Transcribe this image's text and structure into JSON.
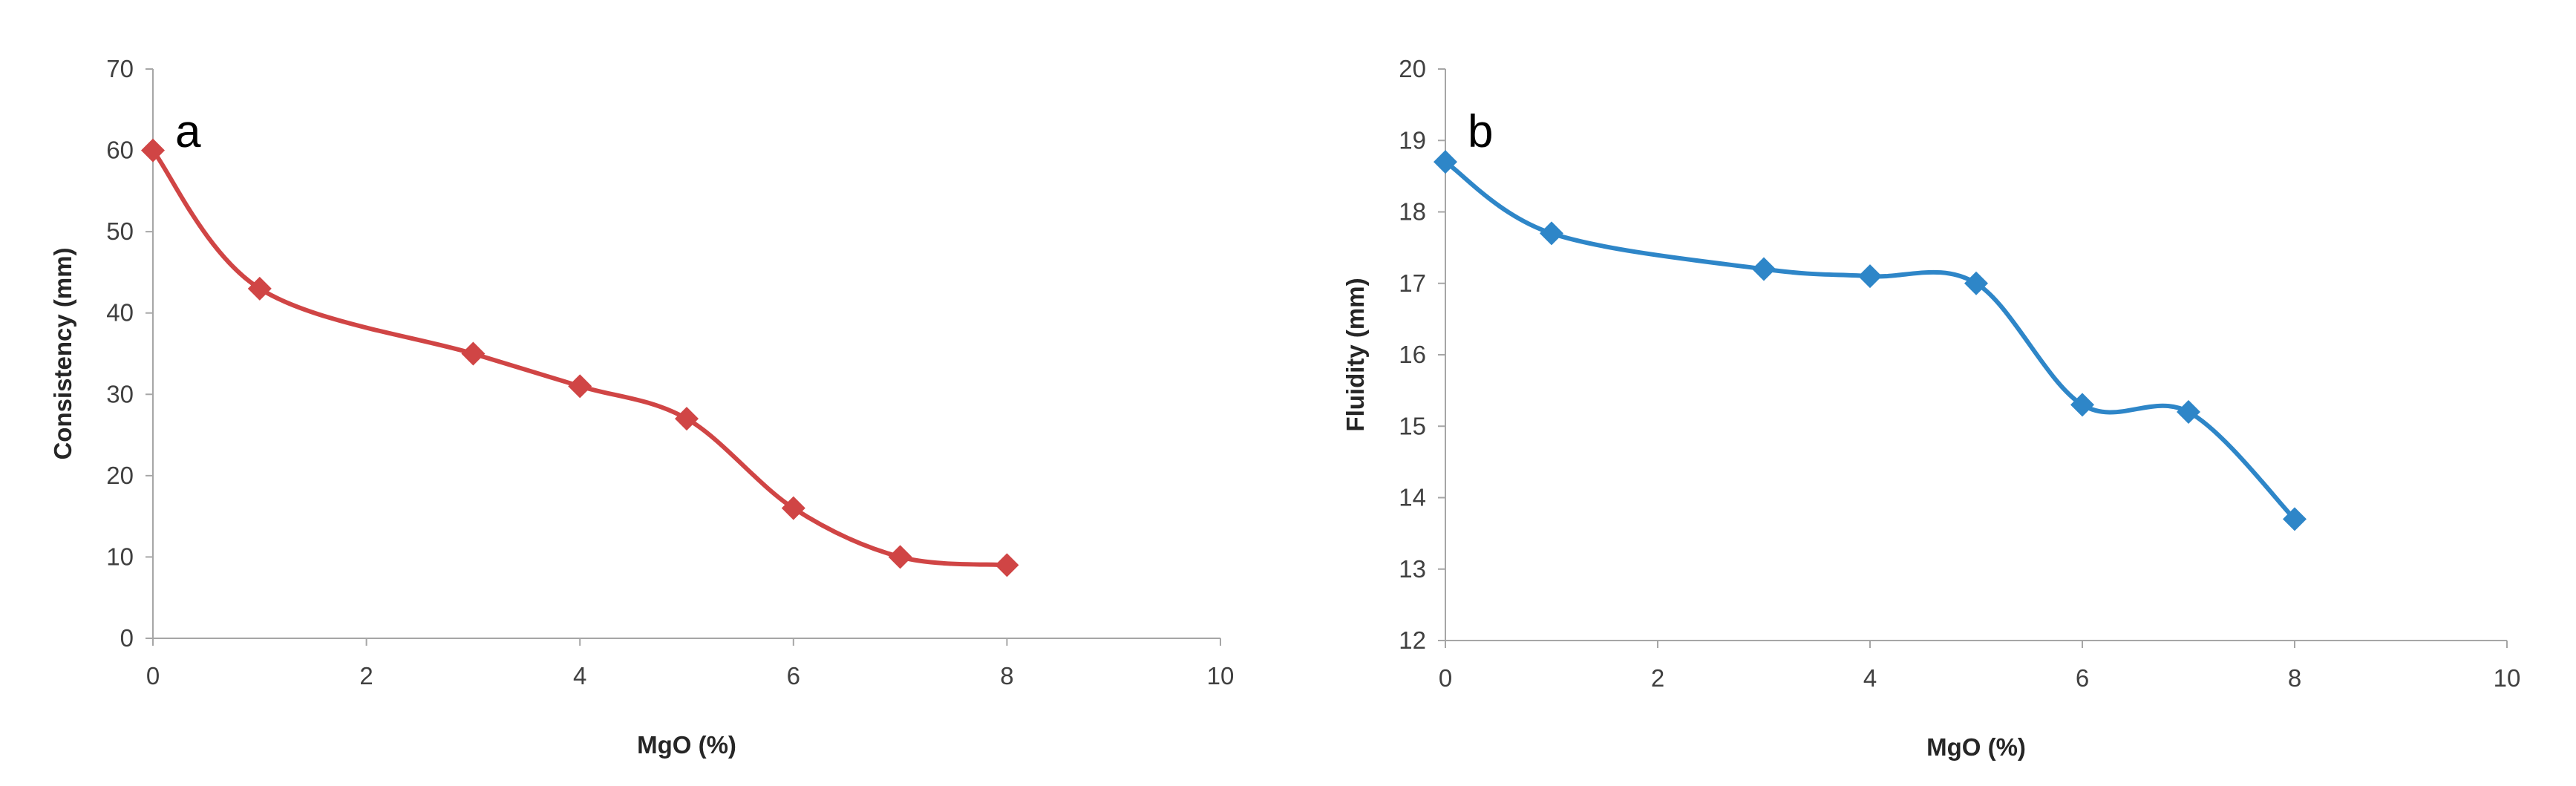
{
  "chart_data": [
    {
      "type": "line",
      "annotation": "a",
      "x_label": "MgO (%)",
      "y_label": "Consistency (mm)",
      "x": [
        0,
        1,
        3,
        4,
        5,
        6,
        7,
        8
      ],
      "values": [
        60,
        43,
        35,
        31,
        27,
        16,
        10,
        9
      ],
      "color": "#d04545",
      "xlim": [
        0,
        10
      ],
      "xticks": [
        0,
        2,
        4,
        6,
        8,
        10
      ],
      "ylim": [
        0,
        70
      ],
      "yticks": [
        0,
        10,
        20,
        30,
        40,
        50,
        60,
        70
      ],
      "grid": false
    },
    {
      "type": "line",
      "annotation": "b",
      "x_label": "MgO (%)",
      "y_label": "Fluidity (mm)",
      "x": [
        0,
        1,
        3,
        4,
        5,
        6,
        7,
        8
      ],
      "values": [
        18.7,
        17.7,
        17.2,
        17.1,
        17.0,
        15.3,
        15.2,
        13.7
      ],
      "color": "#2e86c8",
      "xlim": [
        0,
        10
      ],
      "xticks": [
        0,
        2,
        4,
        6,
        8,
        10
      ],
      "ylim": [
        12,
        20
      ],
      "yticks": [
        12,
        13,
        14,
        15,
        16,
        17,
        18,
        19,
        20
      ],
      "grid": false
    }
  ]
}
